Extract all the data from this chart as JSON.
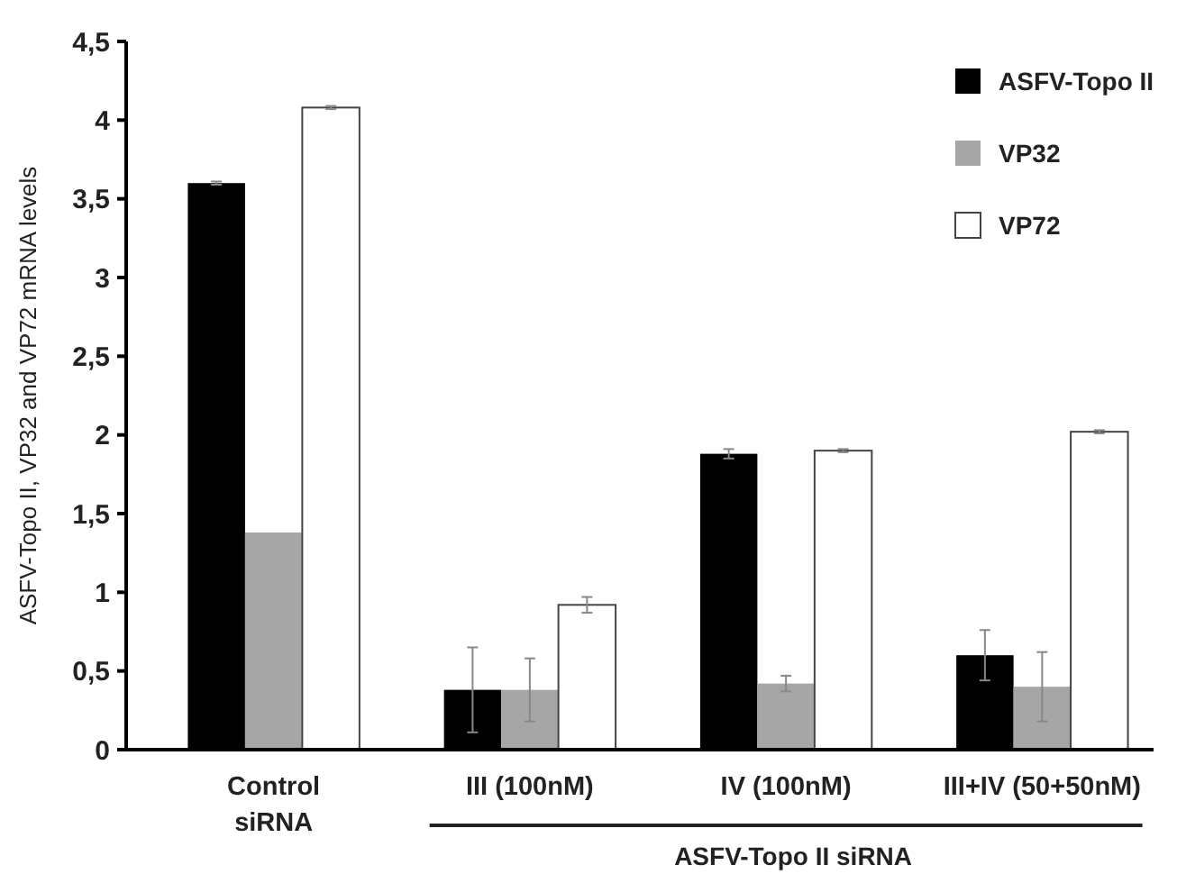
{
  "chart_data": {
    "type": "bar",
    "ylabel": "ASFV-Topo II, VP32 and VP72 mRNA levels",
    "xlabel": "ASFV-Topo II siRNA",
    "categories": [
      "Control\nsiRNA",
      "III (100nM)",
      "IV (100nM)",
      "III+IV (50+50nM)"
    ],
    "series": [
      {
        "name": "ASFV-Topo II",
        "color": "#000000",
        "values": [
          3.6,
          0.38,
          1.88,
          0.6
        ],
        "errors": [
          0.01,
          0.27,
          0.03,
          0.16
        ]
      },
      {
        "name": "VP32",
        "color": "#a6a6a6",
        "values": [
          1.38,
          0.38,
          0.42,
          0.4
        ],
        "errors": [
          null,
          0.2,
          0.05,
          0.22
        ]
      },
      {
        "name": "VP72",
        "color": "#ffffff",
        "values": [
          4.08,
          0.92,
          1.9,
          2.02
        ],
        "errors": [
          0.01,
          0.05,
          0.01,
          0.01
        ]
      }
    ],
    "ylim": [
      0,
      4.5
    ],
    "yticks": [
      {
        "value": 0,
        "label": "0"
      },
      {
        "value": 0.5,
        "label": "0,5"
      },
      {
        "value": 1,
        "label": "1"
      },
      {
        "value": 1.5,
        "label": "1,5"
      },
      {
        "value": 2,
        "label": "2"
      },
      {
        "value": 2.5,
        "label": "2,5"
      },
      {
        "value": 3,
        "label": "3"
      },
      {
        "value": 3.5,
        "label": "3,5"
      },
      {
        "value": 4,
        "label": "4"
      },
      {
        "value": 4.5,
        "label": "4,5"
      }
    ],
    "grid": false,
    "legend": "top right"
  }
}
